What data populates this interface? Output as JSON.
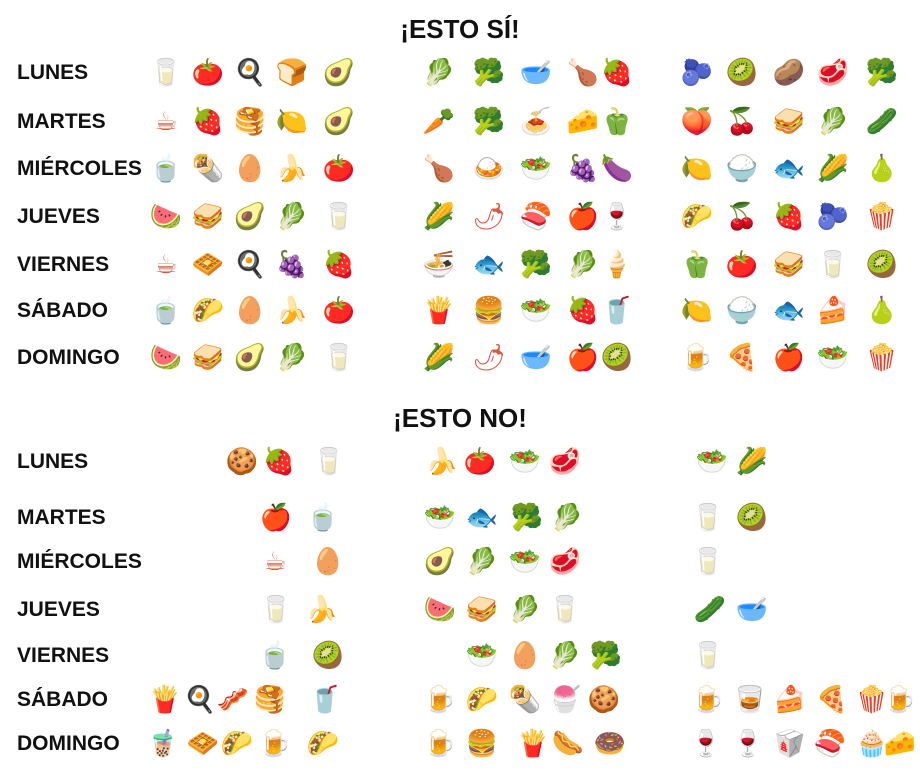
{
  "headings": {
    "yes": "¡ESTO SÍ!",
    "no": "¡ESTO NO!"
  },
  "days": [
    "LUNES",
    "MARTES",
    "MIÉRCOLES",
    "JUEVES",
    "VIERNES",
    "SÁBADO",
    "DOMINGO"
  ],
  "yes_section": {
    "rows": [
      [
        [
          "glass-of-water",
          "tomato",
          "fried-egg",
          "bread",
          "avocado"
        ],
        [
          "lettuce",
          "broccoli",
          "soup-bowl",
          "chicken-leg",
          "strawberry"
        ],
        [
          "blueberries",
          "kiwi",
          "potato",
          "meat",
          "broccoli"
        ]
      ],
      [
        [
          "coffee",
          "strawberry",
          "pancakes",
          "lemon",
          "avocado"
        ],
        [
          "carrot",
          "broccoli",
          "spaghetti",
          "cheese",
          "green-pepper"
        ],
        [
          "peach",
          "cherries",
          "sandwich",
          "lettuce",
          "cucumber"
        ]
      ],
      [
        [
          "green-tea",
          "burrito",
          "egg",
          "banana",
          "tomato"
        ],
        [
          "chicken-leg",
          "curry-rice",
          "salad",
          "grapes",
          "eggplant"
        ],
        [
          "lemon",
          "rice-bowl",
          "fish",
          "corn",
          "pear"
        ]
      ],
      [
        [
          "watermelon",
          "sandwich",
          "avocado",
          "lettuce",
          "glass-of-water"
        ],
        [
          "corn",
          "hot-pepper",
          "sushi",
          "apple",
          "wine-glass"
        ],
        [
          "taco",
          "cherries",
          "strawberry",
          "blueberries",
          "popcorn"
        ]
      ],
      [
        [
          "coffee",
          "waffle",
          "fried-egg",
          "grapes",
          "strawberry"
        ],
        [
          "ramen",
          "fish",
          "broccoli",
          "lettuce",
          "ice-cream"
        ],
        [
          "green-pepper",
          "tomato",
          "sandwich",
          "glass-of-water",
          "kiwi"
        ]
      ],
      [
        [
          "green-tea",
          "taco",
          "egg",
          "banana",
          "tomato"
        ],
        [
          "fries",
          "burger",
          "salad",
          "strawberry",
          "soda-cup"
        ],
        [
          "lemon",
          "rice-bowl",
          "fish",
          "cake",
          "pear"
        ]
      ],
      [
        [
          "watermelon",
          "sandwich",
          "avocado",
          "lettuce",
          "glass-of-water"
        ],
        [
          "corn",
          "hot-pepper",
          "soup-bowl",
          "apple",
          "kiwi"
        ],
        [
          "beer",
          "pizza",
          "apple",
          "salad",
          "popcorn"
        ]
      ]
    ]
  },
  "no_section": {
    "rows": [
      [
        [
          "cookie",
          "strawberry",
          "glass-of-water"
        ],
        [
          "banana",
          "tomato",
          "salad",
          "meat"
        ],
        [
          "salad",
          "corn"
        ]
      ],
      [
        [
          "apple",
          "green-tea"
        ],
        [
          "salad",
          "fish",
          "broccoli",
          "lettuce"
        ],
        [
          "glass-of-water",
          "kiwi"
        ]
      ],
      [
        [
          "coffee",
          "egg"
        ],
        [
          "avocado",
          "lettuce",
          "salad",
          "meat"
        ],
        [
          "glass-of-water"
        ]
      ],
      [
        [
          "glass-of-water",
          "banana"
        ],
        [
          "watermelon",
          "sandwich",
          "lettuce",
          "glass-of-water"
        ],
        [
          "cucumber",
          "soup-bowl"
        ]
      ],
      [
        [
          "green-tea",
          "kiwi"
        ],
        [
          "salad",
          "egg",
          "lettuce",
          "broccoli"
        ],
        [
          "glass-of-water"
        ]
      ],
      [
        [
          "fries",
          "fried-egg",
          "bacon",
          "pancakes",
          "soda-cup"
        ],
        [
          "beer",
          "taco",
          "burrito",
          "shaved-ice",
          "cookie"
        ],
        [
          "beer",
          "whisky",
          "cake",
          "pizza",
          "popcorn",
          "beer"
        ]
      ],
      [
        [
          "bubble-tea",
          "waffle",
          "taco",
          "beer",
          "taco"
        ],
        [
          "beer",
          "burger",
          "fries",
          "hot-dog",
          "donut"
        ],
        [
          "wine-glass",
          "wine-glass",
          "takeout-box",
          "sushi",
          "cupcake",
          "cheese"
        ]
      ]
    ]
  }
}
